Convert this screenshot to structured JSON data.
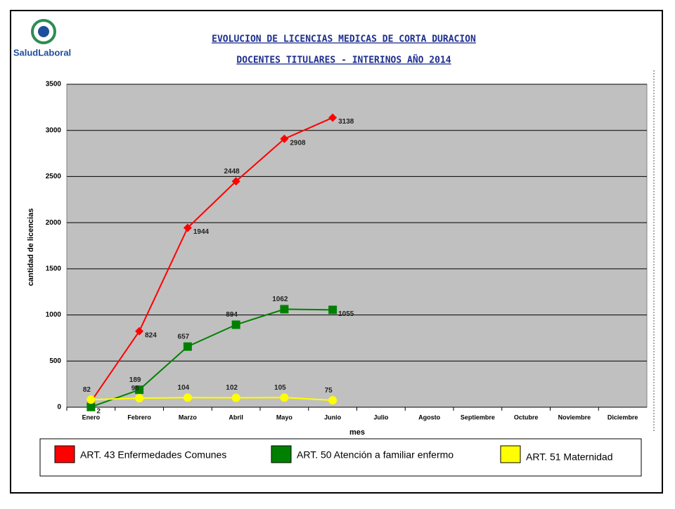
{
  "brand": "SaludLaboral",
  "chart_data": {
    "type": "line",
    "title": "EVOLUCION DE LICENCIAS MEDICAS DE CORTA DURACION",
    "subtitle": "DOCENTES TITULARES - INTERINOS AÑO 2014",
    "y_label": "cantidad de licencias",
    "x_label": "mes",
    "categories": [
      "Enero",
      "Febrero",
      "Marzo",
      "Abril",
      "Mayo",
      "Junio",
      "Julio",
      "Agosto",
      "Septiembre",
      "Octubre",
      "Noviembre",
      "Diciembre"
    ],
    "series": [
      {
        "name": "ART. 43 Enfermedades Comunes",
        "color": "#ff0000",
        "marker": "diamond",
        "values": [
          60,
          824,
          1944,
          2448,
          2908,
          3138,
          null,
          null,
          null,
          null,
          null,
          null
        ],
        "value_labels": [
          null,
          "824",
          "1944",
          "2448",
          "2908",
          "3138",
          null,
          null,
          null,
          null,
          null,
          null
        ]
      },
      {
        "name": "ART. 50 Atención a familiar enfermo",
        "color": "#008000",
        "marker": "square",
        "values": [
          2,
          189,
          657,
          894,
          1062,
          1055,
          null,
          null,
          null,
          null,
          null,
          null
        ],
        "value_labels": [
          "2",
          "189",
          "657",
          "894",
          "1062",
          "1055",
          null,
          null,
          null,
          null,
          null,
          null
        ]
      },
      {
        "name": "ART. 51 Maternidad",
        "color": "#ffff00",
        "marker": "circle",
        "values": [
          82,
          98,
          104,
          102,
          105,
          75,
          null,
          null,
          null,
          null,
          null,
          null
        ],
        "value_labels": [
          "82",
          "98",
          "104",
          "102",
          "105",
          "75",
          null,
          null,
          null,
          null,
          null,
          null
        ]
      }
    ],
    "ylim": [
      0,
      3500
    ],
    "yticks": [
      0,
      500,
      1000,
      1500,
      2000,
      2500,
      3000,
      3500
    ],
    "grid": true
  }
}
